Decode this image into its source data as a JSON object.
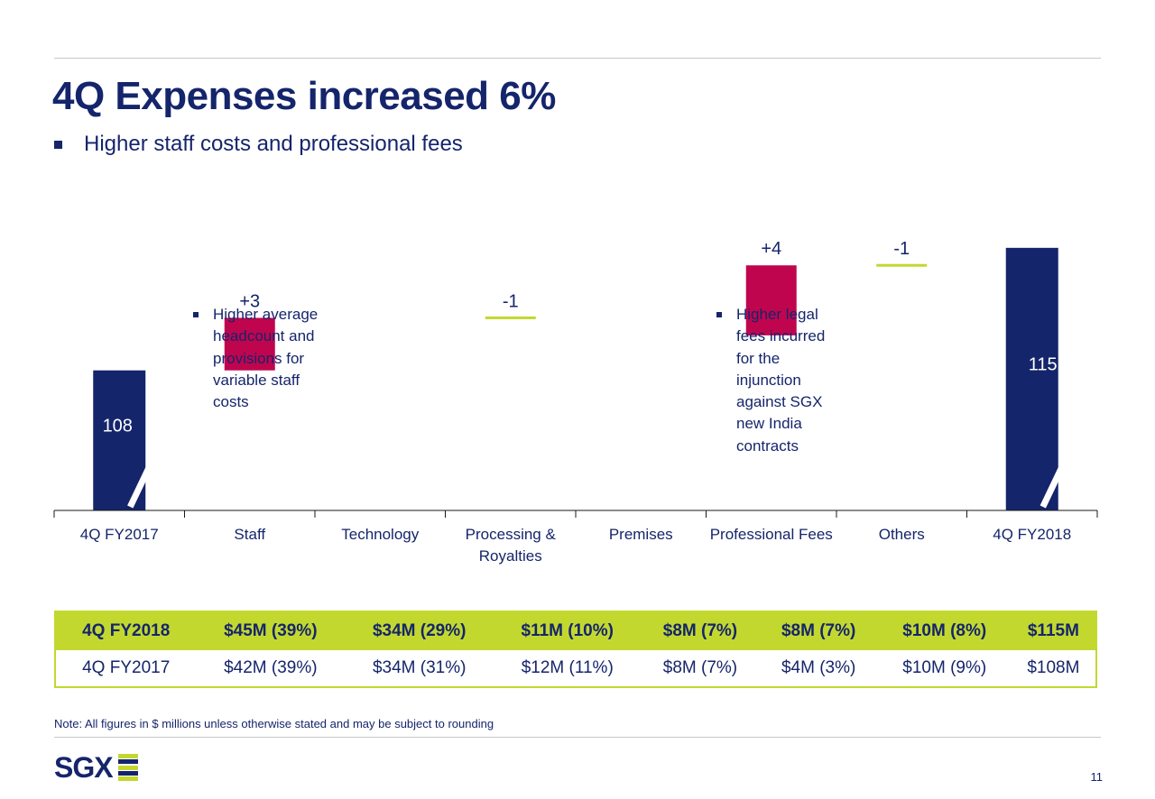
{
  "title": "4Q Expenses increased 6%",
  "subtitle": "Higher staff costs and professional fees",
  "colors": {
    "navy": "#15256b",
    "magenta": "#c0054f",
    "green": "#c3d82f"
  },
  "chart_data": {
    "type": "bar",
    "subtype": "waterfall",
    "categories": [
      "4Q FY2017",
      "Staff",
      "Technology",
      "Processing & Royalties",
      "Premises",
      "Professional Fees",
      "Others",
      "4Q FY2018"
    ],
    "category_lines": [
      [
        "4Q FY2017"
      ],
      [
        "Staff"
      ],
      [
        "Technology"
      ],
      [
        "Processing &",
        "Royalties"
      ],
      [
        "Premises"
      ],
      [
        "Professional Fees"
      ],
      [
        "Others"
      ],
      [
        "4Q FY2018"
      ]
    ],
    "values": [
      108,
      3,
      0,
      -1,
      0,
      4,
      -1,
      115
    ],
    "data_labels": [
      "108",
      "+3",
      "",
      "-1",
      "",
      "+4",
      "-1",
      "115"
    ],
    "ylim": [
      100,
      117
    ],
    "axis_break": true
  },
  "notes": [
    {
      "category": "Staff",
      "text": "Higher average headcount and provisions for variable staff costs"
    },
    {
      "category": "Professional Fees",
      "text": "Higher legal fees incurred for the injunction against SGX new India contracts"
    }
  ],
  "table": {
    "rows": [
      {
        "highlight": true,
        "cells": [
          "4Q FY2018",
          "$45M (39%)",
          "$34M (29%)",
          "$11M (10%)",
          "$8M (7%)",
          "$8M (7%)",
          "$10M (8%)",
          "$115M"
        ]
      },
      {
        "highlight": false,
        "cells": [
          "4Q FY2017",
          "$42M (39%)",
          "$34M (31%)",
          "$12M (11%)",
          "$8M (7%)",
          "$4M (3%)",
          "$10M (9%)",
          "$108M"
        ]
      }
    ]
  },
  "footnote": "Note: All figures in $ millions unless otherwise stated and may be subject to rounding",
  "logo_text": "SGX",
  "page_number": "11"
}
